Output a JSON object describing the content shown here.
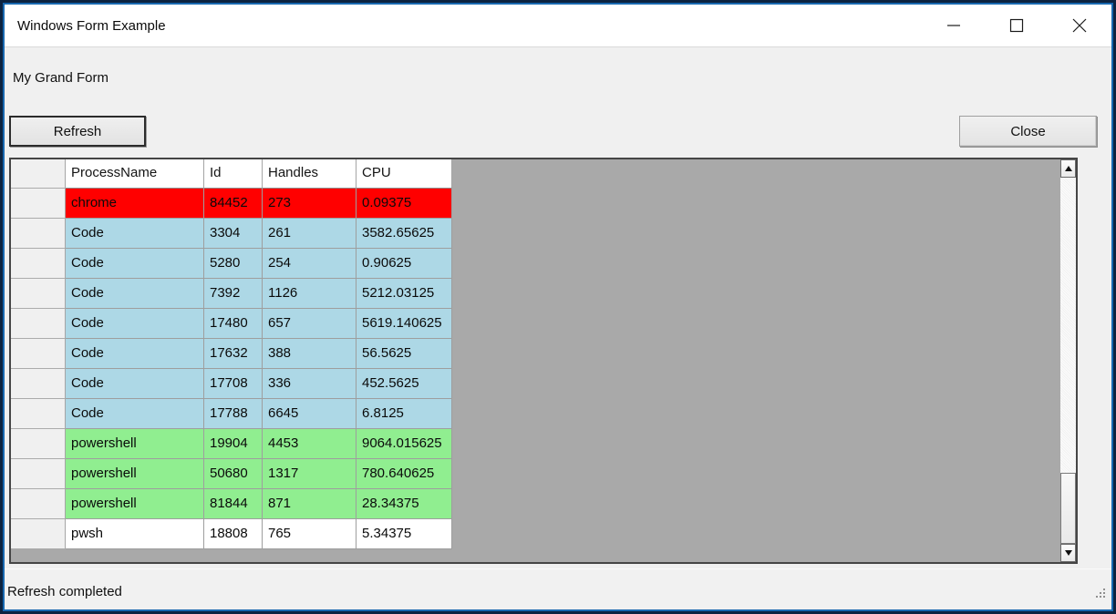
{
  "window": {
    "title": "Windows Form Example"
  },
  "form": {
    "heading": "My Grand Form",
    "buttons": {
      "refresh": "Refresh",
      "close": "Close"
    },
    "status": "Refresh completed"
  },
  "grid": {
    "columns": [
      "ProcessName",
      "Id",
      "Handles",
      "CPU"
    ],
    "rows": [
      {
        "cells": [
          "chrome",
          "84452",
          "273",
          "0.09375"
        ],
        "color": "#ff0000"
      },
      {
        "cells": [
          "Code",
          "3304",
          "261",
          "3582.65625"
        ],
        "color": "#add8e6"
      },
      {
        "cells": [
          "Code",
          "5280",
          "254",
          "0.90625"
        ],
        "color": "#add8e6"
      },
      {
        "cells": [
          "Code",
          "7392",
          "1126",
          "5212.03125"
        ],
        "color": "#add8e6"
      },
      {
        "cells": [
          "Code",
          "17480",
          "657",
          "5619.140625"
        ],
        "color": "#add8e6"
      },
      {
        "cells": [
          "Code",
          "17632",
          "388",
          "56.5625"
        ],
        "color": "#add8e6"
      },
      {
        "cells": [
          "Code",
          "17708",
          "336",
          "452.5625"
        ],
        "color": "#add8e6"
      },
      {
        "cells": [
          "Code",
          "17788",
          "6645",
          "6.8125"
        ],
        "color": "#add8e6"
      },
      {
        "cells": [
          "powershell",
          "19904",
          "4453",
          "9064.015625"
        ],
        "color": "#90ee90"
      },
      {
        "cells": [
          "powershell",
          "50680",
          "1317",
          "780.640625"
        ],
        "color": "#90ee90"
      },
      {
        "cells": [
          "powershell",
          "81844",
          "871",
          "28.34375"
        ],
        "color": "#90ee90"
      },
      {
        "cells": [
          "pwsh",
          "18808",
          "765",
          "5.34375"
        ],
        "color": "#ffffff"
      }
    ]
  },
  "colors": {
    "accent_border": "#1868b0",
    "frame": "#0c2340",
    "grid_background": "#a9a9a9",
    "row_red": "#ff0000",
    "row_blue": "#add8e6",
    "row_green": "#90ee90",
    "row_white": "#ffffff"
  }
}
